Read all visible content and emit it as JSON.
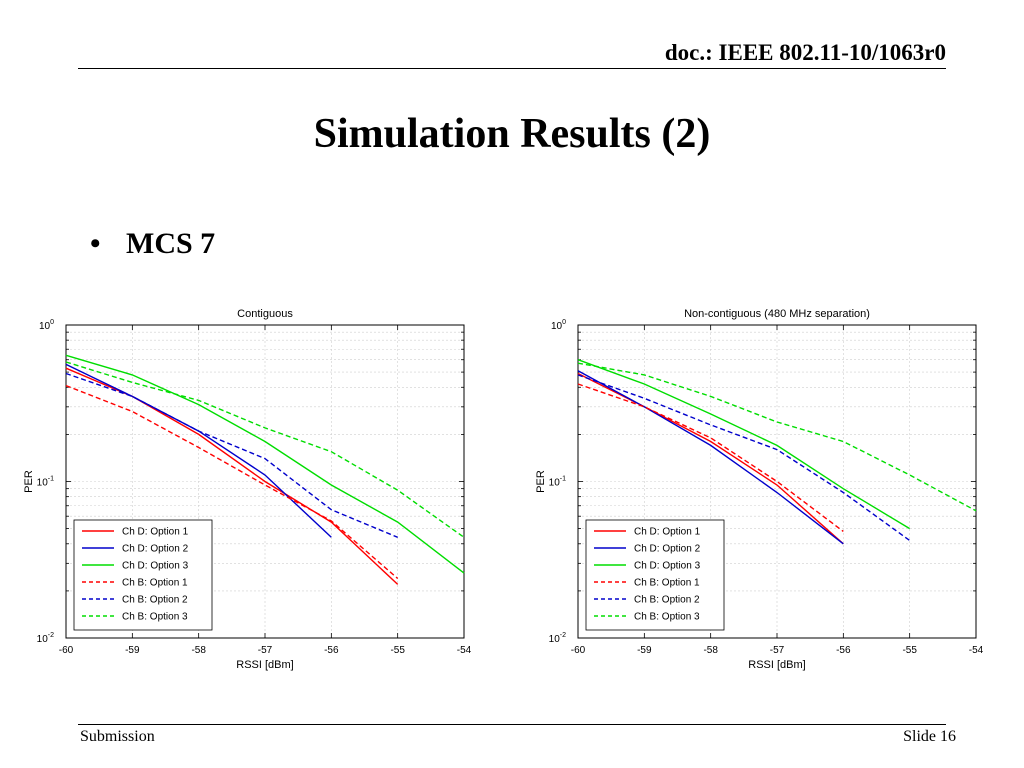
{
  "header": {
    "doc_id": "doc.: IEEE 802.11-10/1063r0"
  },
  "slide": {
    "title": "Simulation Results (2)",
    "bullet": "MCS 7"
  },
  "footer": {
    "left": "Submission",
    "right": "Slide 16"
  },
  "chart_data": [
    {
      "type": "line",
      "title": "Contiguous",
      "xlabel": "RSSI [dBm]",
      "ylabel": "PER",
      "xlim": [
        -60,
        -54
      ],
      "ylim": [
        0.01,
        1
      ],
      "yscale": "log",
      "xticks": [
        "-60",
        "-59",
        "-58",
        "-57",
        "-56",
        "-55",
        "-54"
      ],
      "yticks": [
        {
          "base": "10",
          "exp": "0"
        },
        {
          "base": "10",
          "exp": "-1"
        },
        {
          "base": "10",
          "exp": "-2"
        }
      ],
      "grid": true,
      "legend": "bottom-left",
      "series": [
        {
          "name": "Ch D: Option 1",
          "color": "#ff0000",
          "dash": false,
          "x": [
            -60,
            -59,
            -58,
            -57,
            -56,
            -55
          ],
          "y": [
            0.53,
            0.35,
            0.2,
            0.1,
            0.055,
            0.022
          ]
        },
        {
          "name": "Ch D: Option 2",
          "color": "#0000cc",
          "dash": false,
          "x": [
            -60,
            -59,
            -58,
            -57,
            -56
          ],
          "y": [
            0.56,
            0.35,
            0.21,
            0.11,
            0.044
          ]
        },
        {
          "name": "Ch D: Option 3",
          "color": "#00dd00",
          "dash": false,
          "x": [
            -60,
            -59,
            -58,
            -57,
            -56,
            -55,
            -54
          ],
          "y": [
            0.64,
            0.48,
            0.31,
            0.18,
            0.095,
            0.055,
            0.026
          ]
        },
        {
          "name": "Ch B: Option 1",
          "color": "#ff0000",
          "dash": true,
          "x": [
            -60,
            -59,
            -58,
            -57,
            -56,
            -55
          ],
          "y": [
            0.41,
            0.28,
            0.165,
            0.095,
            0.056,
            0.024
          ]
        },
        {
          "name": "Ch B: Option 2",
          "color": "#0000cc",
          "dash": true,
          "x": [
            -60,
            -59,
            -58,
            -57,
            -56,
            -55
          ],
          "y": [
            0.49,
            0.35,
            0.21,
            0.14,
            0.066,
            0.044
          ]
        },
        {
          "name": "Ch B: Option 3",
          "color": "#00dd00",
          "dash": true,
          "x": [
            -60,
            -59,
            -58,
            -57,
            -56,
            -55,
            -54
          ],
          "y": [
            0.58,
            0.43,
            0.33,
            0.22,
            0.155,
            0.088,
            0.044
          ]
        }
      ]
    },
    {
      "type": "line",
      "title": "Non-contiguous (480 MHz separation)",
      "xlabel": "RSSI [dBm]",
      "ylabel": "PER",
      "xlim": [
        -60,
        -54
      ],
      "ylim": [
        0.01,
        1
      ],
      "yscale": "log",
      "xticks": [
        "-60",
        "-59",
        "-58",
        "-57",
        "-56",
        "-55",
        "-54"
      ],
      "yticks": [
        {
          "base": "10",
          "exp": "0"
        },
        {
          "base": "10",
          "exp": "-1"
        },
        {
          "base": "10",
          "exp": "-2"
        }
      ],
      "grid": true,
      "legend": "bottom-left",
      "series": [
        {
          "name": "Ch D: Option 1",
          "color": "#ff0000",
          "dash": false,
          "x": [
            -60,
            -59,
            -58,
            -57,
            -56
          ],
          "y": [
            0.49,
            0.3,
            0.18,
            0.095,
            0.04
          ]
        },
        {
          "name": "Ch D: Option 2",
          "color": "#0000cc",
          "dash": false,
          "x": [
            -60,
            -59,
            -58,
            -57,
            -56
          ],
          "y": [
            0.51,
            0.3,
            0.17,
            0.085,
            0.04
          ]
        },
        {
          "name": "Ch D: Option 3",
          "color": "#00dd00",
          "dash": false,
          "x": [
            -60,
            -59,
            -58,
            -57,
            -56,
            -55
          ],
          "y": [
            0.6,
            0.42,
            0.27,
            0.17,
            0.09,
            0.05
          ]
        },
        {
          "name": "Ch B: Option 1",
          "color": "#ff0000",
          "dash": true,
          "x": [
            -60,
            -59,
            -58,
            -57,
            -56
          ],
          "y": [
            0.42,
            0.3,
            0.19,
            0.1,
            0.048
          ]
        },
        {
          "name": "Ch B: Option 2",
          "color": "#0000cc",
          "dash": true,
          "x": [
            -60,
            -59,
            -58,
            -57,
            -56,
            -55
          ],
          "y": [
            0.48,
            0.34,
            0.23,
            0.16,
            0.085,
            0.042
          ]
        },
        {
          "name": "Ch B: Option 3",
          "color": "#00dd00",
          "dash": true,
          "x": [
            -60,
            -59,
            -58,
            -57,
            -56,
            -55,
            -54
          ],
          "y": [
            0.57,
            0.48,
            0.35,
            0.24,
            0.18,
            0.11,
            0.065
          ]
        }
      ]
    }
  ]
}
